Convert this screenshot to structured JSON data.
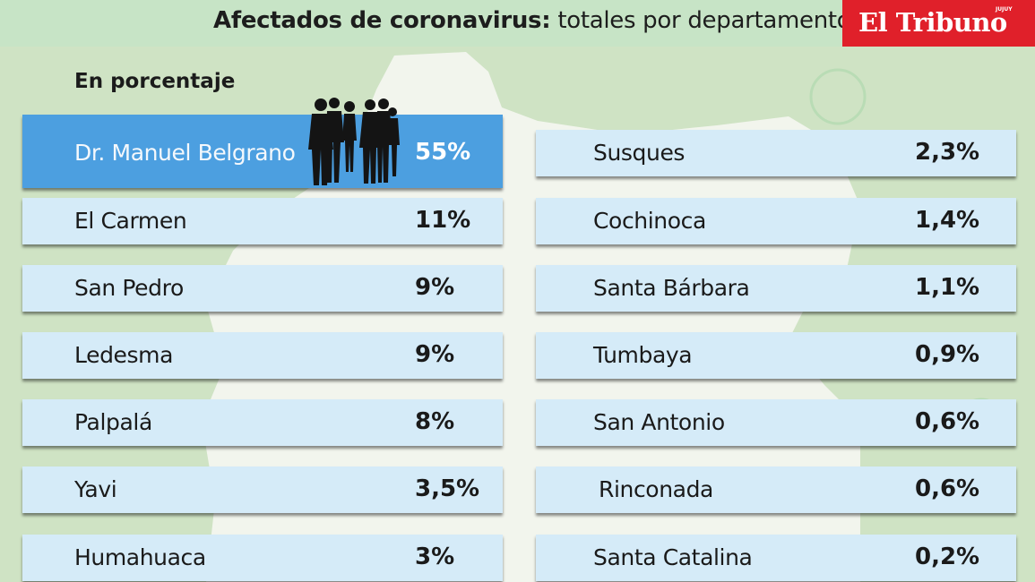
{
  "header": {
    "title_bold": "Afectados de coronavirus:",
    "title_rest": "totales por departamento",
    "brand_name": "El Tribuno",
    "brand_sub": "JUJUY"
  },
  "subtitle": "En porcentaje",
  "colors": {
    "background": "#cfe3c4",
    "header": "#c7e4c6",
    "brand": "#e0202a",
    "row": "#d5ebf8",
    "highlight": "#4c9fe0"
  },
  "chart_data": {
    "type": "table",
    "unit": "%",
    "highlighted": "Dr. Manuel Belgrano",
    "left_column": [
      {
        "name": "Dr. Manuel Belgrano",
        "value": 55,
        "label": "55%"
      },
      {
        "name": "El Carmen",
        "value": 11,
        "label": "11%"
      },
      {
        "name": "San Pedro",
        "value": 9,
        "label": "9%"
      },
      {
        "name": "Ledesma",
        "value": 9,
        "label": "9%"
      },
      {
        "name": "Palpalá",
        "value": 8,
        "label": "8%"
      },
      {
        "name": "Yavi",
        "value": 3.5,
        "label": "3,5%"
      },
      {
        "name": "Humahuaca",
        "value": 3,
        "label": "3%"
      }
    ],
    "right_column": [
      {
        "name": "Susques",
        "value": 2.3,
        "label": "2,3%"
      },
      {
        "name": "Cochinoca",
        "value": 1.4,
        "label": "1,4%"
      },
      {
        "name": "Santa Bárbara",
        "value": 1.1,
        "label": "1,1%"
      },
      {
        "name": "Tumbaya",
        "value": 0.9,
        "label": "0,9%"
      },
      {
        "name": "San Antonio",
        "value": 0.6,
        "label": "0,6%"
      },
      {
        "name": "Rinconada",
        "value": 0.6,
        "label": "0,6%"
      },
      {
        "name": "Santa Catalina",
        "value": 0.2,
        "label": "0,2%"
      }
    ]
  }
}
